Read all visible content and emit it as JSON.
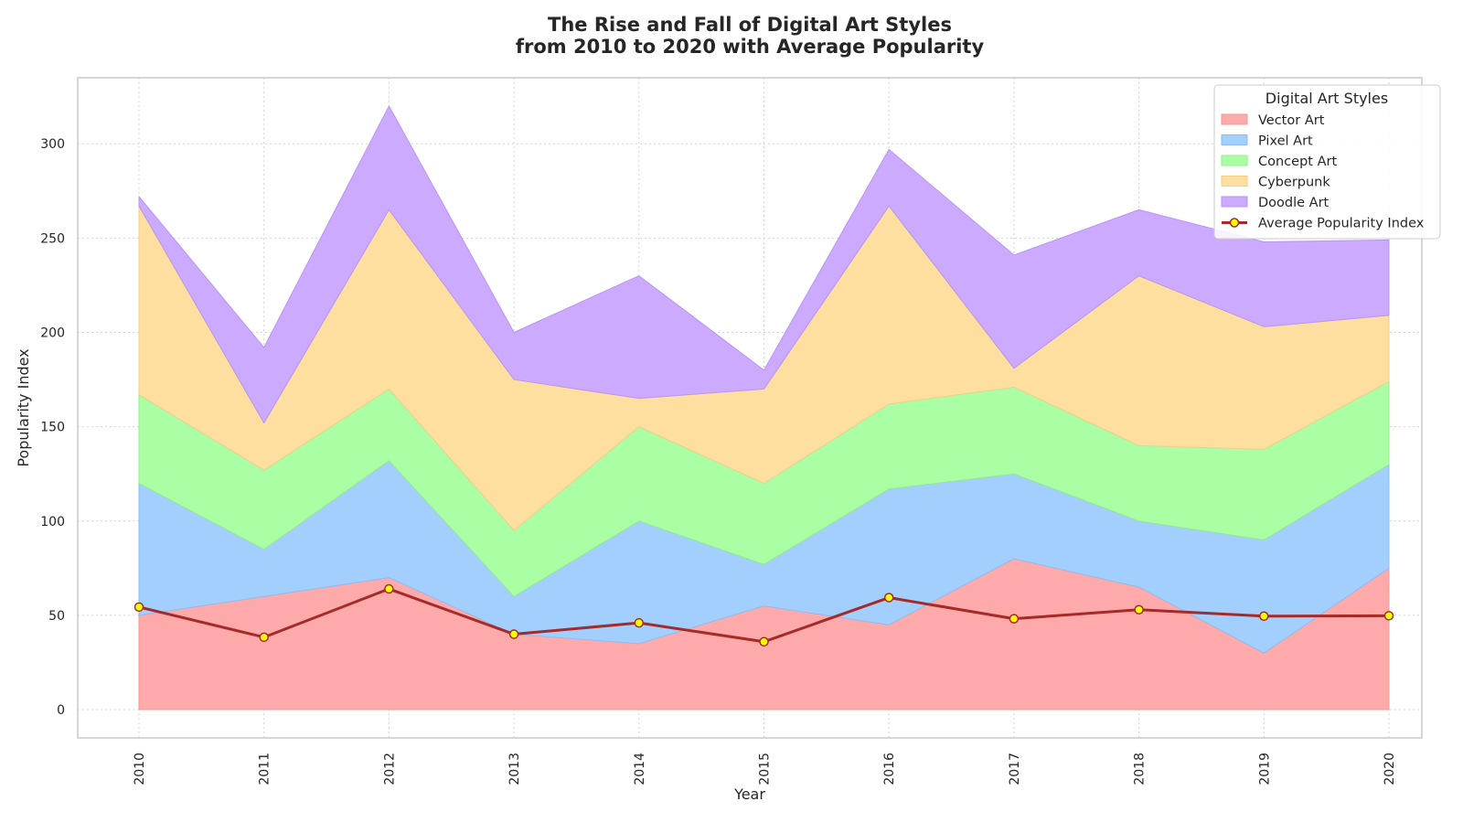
{
  "chart_data": {
    "type": "area",
    "stacked": true,
    "title": "The Rise and Fall of Digital Art Styles",
    "subtitle": "from 2010 to 2020 with Average Popularity",
    "xlabel": "Year",
    "ylabel": "Popularity Index",
    "x": [
      "2010",
      "2011",
      "2012",
      "2013",
      "2014",
      "2015",
      "2016",
      "2017",
      "2018",
      "2019",
      "2020"
    ],
    "ylim": [
      -15,
      335
    ],
    "yticks": [
      0,
      50,
      100,
      150,
      200,
      250,
      300
    ],
    "grid": true,
    "legend": {
      "title": "Digital Art Styles",
      "position": "top-right"
    },
    "series": [
      {
        "name": "Vector Art",
        "color": "#ffaaaa",
        "edge": "#f29a9a",
        "values": [
          50,
          60,
          70,
          40,
          35,
          55,
          45,
          80,
          65,
          30,
          75
        ]
      },
      {
        "name": "Pixel Art",
        "color": "#a3cfff",
        "edge": "#8fbcf2",
        "values": [
          70,
          25,
          62,
          20,
          65,
          22,
          72,
          45,
          35,
          60,
          55
        ]
      },
      {
        "name": "Concept Art",
        "color": "#aaffa4",
        "edge": "#95ec8f",
        "values": [
          47,
          42,
          38,
          35,
          50,
          43,
          45,
          46,
          40,
          48,
          44
        ]
      },
      {
        "name": "Cyberpunk",
        "color": "#ffdfa0",
        "edge": "#f2cf8a",
        "values": [
          100,
          25,
          95,
          80,
          15,
          50,
          105,
          10,
          90,
          65,
          35
        ]
      },
      {
        "name": "Doodle Art",
        "color": "#ccaaff",
        "edge": "#b896f2",
        "values": [
          5,
          40,
          55,
          25,
          65,
          10,
          30,
          60,
          35,
          45,
          40
        ]
      }
    ],
    "line": {
      "name": "Average Popularity Index",
      "color": "#a52a2a",
      "marker_fill": "#ffff00",
      "values": [
        54.4,
        38.4,
        64.0,
        40.0,
        46.0,
        36.0,
        59.4,
        48.2,
        53.0,
        49.6,
        49.8
      ]
    }
  }
}
